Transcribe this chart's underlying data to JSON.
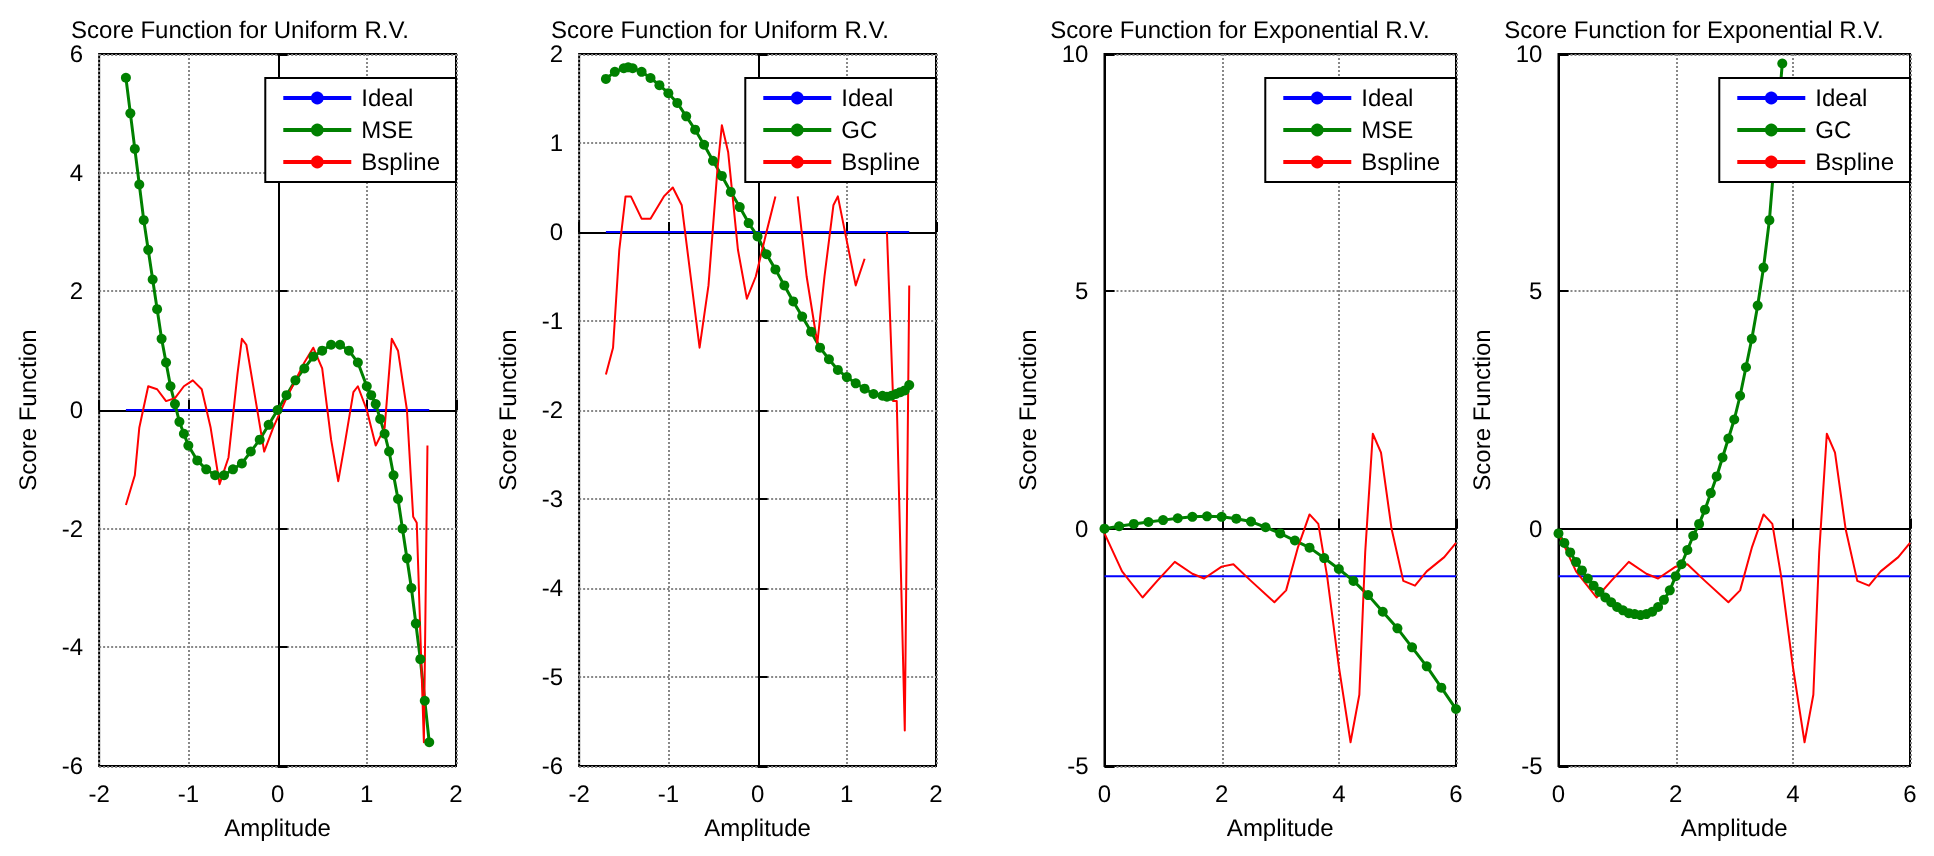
{
  "chart_data": [
    {
      "type": "line",
      "title": "Score Function for Uniform R.V.",
      "xlabel": "Amplitude",
      "ylabel": "Score Function",
      "xlim": [
        -2,
        2
      ],
      "xticks": [
        -2,
        -1,
        0,
        1,
        2
      ],
      "ylim": [
        -6,
        6
      ],
      "yticks": [
        -6,
        -4,
        -2,
        0,
        2,
        4,
        6
      ],
      "grid": true,
      "legend": "top right",
      "series": [
        {
          "name": "Ideal",
          "color": "#0000ff",
          "marker": "none",
          "x": [
            -1.7,
            1.7
          ],
          "values": [
            0,
            0
          ]
        },
        {
          "name": "MSE",
          "color": "#008000",
          "marker": "circle",
          "x": [
            -1.7,
            -1.65,
            -1.6,
            -1.55,
            -1.5,
            -1.45,
            -1.4,
            -1.35,
            -1.3,
            -1.25,
            -1.2,
            -1.15,
            -1.1,
            -1.05,
            -1.0,
            -0.9,
            -0.8,
            -0.7,
            -0.6,
            -0.5,
            -0.4,
            -0.3,
            -0.2,
            -0.1,
            0,
            0.1,
            0.2,
            0.3,
            0.4,
            0.5,
            0.6,
            0.7,
            0.8,
            0.9,
            1.0,
            1.05,
            1.1,
            1.15,
            1.2,
            1.25,
            1.3,
            1.35,
            1.4,
            1.45,
            1.5,
            1.55,
            1.6,
            1.65,
            1.7
          ],
          "values": [
            5.6,
            5.0,
            4.4,
            3.8,
            3.2,
            2.7,
            2.2,
            1.7,
            1.2,
            0.8,
            0.4,
            0.1,
            -0.2,
            -0.4,
            -0.6,
            -0.85,
            -1.0,
            -1.1,
            -1.1,
            -1.0,
            -0.9,
            -0.7,
            -0.5,
            -0.25,
            0,
            0.25,
            0.5,
            0.7,
            0.9,
            1.0,
            1.1,
            1.1,
            1.0,
            0.8,
            0.4,
            0.25,
            0.1,
            -0.15,
            -0.4,
            -0.7,
            -1.1,
            -1.5,
            -2.0,
            -2.5,
            -3.0,
            -3.6,
            -4.2,
            -4.9,
            -5.6
          ]
        },
        {
          "name": "Bspline",
          "color": "#ff0000",
          "marker": "none",
          "x": [
            -1.7,
            -1.6,
            -1.55,
            -1.45,
            -1.35,
            -1.25,
            -1.15,
            -1.05,
            -0.95,
            -0.85,
            -0.75,
            -0.65,
            -0.55,
            -0.45,
            -0.4,
            -0.35,
            -0.25,
            -0.15,
            -0.05,
            0.1,
            0.2,
            0.3,
            0.4,
            0.5,
            0.6,
            0.68,
            0.75,
            0.85,
            0.9,
            1.0,
            1.1,
            1.2,
            1.28,
            1.35,
            1.45,
            1.52,
            1.56,
            1.64,
            1.68
          ],
          "values": [
            -1.6,
            -1.1,
            -0.3,
            0.4,
            0.35,
            0.15,
            0.2,
            0.4,
            0.5,
            0.35,
            -0.3,
            -1.25,
            -0.8,
            0.6,
            1.2,
            1.1,
            0.2,
            -0.7,
            -0.3,
            0.2,
            0.5,
            0.8,
            1.05,
            0.7,
            -0.5,
            -1.2,
            -0.6,
            0.3,
            0.4,
            0.0,
            -0.6,
            -0.3,
            1.2,
            1.0,
            0,
            -1.8,
            -1.9,
            -5.6,
            -0.6
          ]
        }
      ]
    },
    {
      "type": "line",
      "title": "Score Function for Uniform R.V.",
      "xlabel": "Amplitude",
      "ylabel": "Score Function",
      "xlim": [
        -2,
        2
      ],
      "xticks": [
        -2,
        -1,
        0,
        1,
        2
      ],
      "ylim": [
        -6,
        2
      ],
      "yticks": [
        -6,
        -5,
        -4,
        -3,
        -2,
        -1,
        0,
        1,
        2
      ],
      "grid": true,
      "legend": "top right",
      "series": [
        {
          "name": "Ideal",
          "color": "#0000ff",
          "marker": "none",
          "x": [
            -1.7,
            1.7
          ],
          "values": [
            0,
            0
          ]
        },
        {
          "name": "GC",
          "color": "#008000",
          "marker": "circle",
          "x": [
            -1.7,
            -1.6,
            -1.5,
            -1.45,
            -1.4,
            -1.3,
            -1.2,
            -1.1,
            -1.0,
            -0.9,
            -0.8,
            -0.7,
            -0.6,
            -0.5,
            -0.4,
            -0.3,
            -0.2,
            -0.1,
            0,
            0.1,
            0.2,
            0.3,
            0.4,
            0.5,
            0.6,
            0.7,
            0.8,
            0.9,
            1.0,
            1.1,
            1.2,
            1.3,
            1.4,
            1.45,
            1.5,
            1.55,
            1.6,
            1.65,
            1.7
          ],
          "values": [
            1.72,
            1.8,
            1.84,
            1.85,
            1.84,
            1.8,
            1.73,
            1.65,
            1.56,
            1.45,
            1.3,
            1.15,
            0.98,
            0.8,
            0.63,
            0.45,
            0.28,
            0.1,
            -0.05,
            -0.25,
            -0.42,
            -0.6,
            -0.78,
            -0.95,
            -1.12,
            -1.3,
            -1.43,
            -1.55,
            -1.63,
            -1.7,
            -1.76,
            -1.82,
            -1.84,
            -1.85,
            -1.84,
            -1.82,
            -1.8,
            -1.78,
            -1.72
          ]
        },
        {
          "name": "Bspline",
          "color": "#ff0000",
          "marker": "none",
          "x": [
            -1.7,
            -1.62,
            -1.55,
            -1.48,
            -1.42,
            -1.3,
            -1.2,
            -1.05,
            -0.95,
            -0.85,
            -0.75,
            -0.65,
            -0.55,
            -0.45,
            -0.4,
            -0.33,
            -0.22,
            -0.12,
            -0.02,
            0.1,
            0.2,
            0.3,
            0.45,
            0.55,
            0.67,
            0.75,
            0.85,
            0.9,
            1.0,
            1.1,
            1.2,
            1.28,
            1.45,
            1.52,
            1.56,
            1.65,
            1.7
          ],
          "values": [
            -1.6,
            -1.3,
            -0.2,
            0.4,
            0.4,
            0.15,
            0.15,
            0.4,
            0.5,
            0.3,
            -0.5,
            -1.3,
            -0.6,
            0.7,
            1.2,
            0.9,
            -0.2,
            -0.75,
            -0.5,
            0,
            0.4,
            null,
            0.4,
            -0.5,
            -1.25,
            -0.5,
            0.3,
            0.4,
            -0.1,
            -0.6,
            -0.3,
            null,
            0,
            -1.9,
            -1.9,
            -5.6,
            -0.6
          ]
        }
      ]
    },
    {
      "type": "line",
      "title": "Score Function for Exponential R.V.",
      "xlabel": "Amplitude",
      "ylabel": "Score Function",
      "xlim": [
        0,
        6
      ],
      "xticks": [
        0,
        2,
        4,
        6
      ],
      "ylim": [
        -5,
        10
      ],
      "yticks": [
        -5,
        0,
        5,
        10
      ],
      "grid": true,
      "legend": "top right",
      "series": [
        {
          "name": "Ideal",
          "color": "#0000ff",
          "marker": "none",
          "x": [
            0,
            6
          ],
          "values": [
            -1,
            -1
          ]
        },
        {
          "name": "MSE",
          "color": "#008000",
          "marker": "circle",
          "x": [
            0,
            0.25,
            0.5,
            0.75,
            1,
            1.25,
            1.5,
            1.75,
            2,
            2.25,
            2.5,
            2.75,
            3,
            3.25,
            3.5,
            3.75,
            4,
            4.25,
            4.5,
            4.75,
            5,
            5.25,
            5.5,
            5.75,
            6
          ],
          "values": [
            0,
            0.05,
            0.1,
            0.14,
            0.18,
            0.22,
            0.25,
            0.26,
            0.25,
            0.21,
            0.15,
            0.03,
            -0.1,
            -0.25,
            -0.4,
            -0.62,
            -0.85,
            -1.1,
            -1.4,
            -1.75,
            -2.1,
            -2.5,
            -2.9,
            -3.35,
            -3.8
          ]
        },
        {
          "name": "Bspline",
          "color": "#ff0000",
          "marker": "none",
          "x": [
            0,
            0.3,
            0.65,
            0.9,
            1.2,
            1.5,
            1.7,
            2.0,
            2.2,
            2.5,
            2.9,
            3.1,
            3.3,
            3.5,
            3.65,
            3.8,
            4.0,
            4.2,
            4.35,
            4.45,
            4.58,
            4.72,
            4.9,
            5.1,
            5.3,
            5.5,
            5.8,
            6
          ],
          "values": [
            -0.1,
            -0.9,
            -1.45,
            -1.1,
            -0.7,
            -0.95,
            -1.05,
            -0.8,
            -0.75,
            -1.1,
            -1.55,
            -1.3,
            -0.4,
            0.3,
            0.1,
            -1.0,
            -2.9,
            -4.5,
            -3.5,
            -0.5,
            2.0,
            1.6,
            0,
            -1.1,
            -1.2,
            -0.9,
            -0.6,
            -0.3
          ]
        }
      ]
    },
    {
      "type": "line",
      "title": "Score Function for Exponential R.V.",
      "xlabel": "Amplitude",
      "ylabel": "Score Function",
      "xlim": [
        0,
        6
      ],
      "xticks": [
        0,
        2,
        4,
        6
      ],
      "ylim": [
        -5,
        10
      ],
      "yticks": [
        -5,
        0,
        5,
        10
      ],
      "grid": true,
      "legend": "top right",
      "series": [
        {
          "name": "Ideal",
          "color": "#0000ff",
          "marker": "none",
          "x": [
            0,
            6
          ],
          "values": [
            -1,
            -1
          ]
        },
        {
          "name": "GC",
          "color": "#008000",
          "marker": "circle",
          "x": [
            0,
            0.1,
            0.2,
            0.3,
            0.4,
            0.5,
            0.6,
            0.7,
            0.8,
            0.9,
            1.0,
            1.1,
            1.2,
            1.3,
            1.4,
            1.5,
            1.6,
            1.7,
            1.8,
            1.9,
            2.0,
            2.1,
            2.2,
            2.3,
            2.4,
            2.5,
            2.6,
            2.7,
            2.8,
            2.9,
            3.0,
            3.1,
            3.2,
            3.3,
            3.4,
            3.5,
            3.6,
            3.82
          ],
          "values": [
            -0.1,
            -0.3,
            -0.5,
            -0.7,
            -0.88,
            -1.05,
            -1.2,
            -1.33,
            -1.45,
            -1.55,
            -1.65,
            -1.72,
            -1.78,
            -1.8,
            -1.82,
            -1.8,
            -1.75,
            -1.65,
            -1.5,
            -1.3,
            -1.0,
            -0.75,
            -0.45,
            -0.15,
            0.1,
            0.4,
            0.75,
            1.1,
            1.5,
            1.9,
            2.3,
            2.8,
            3.4,
            4.0,
            4.7,
            5.5,
            6.5,
            9.8
          ]
        },
        {
          "name": "Bspline",
          "color": "#ff0000",
          "marker": "none",
          "x": [
            0,
            0.3,
            0.65,
            0.9,
            1.2,
            1.5,
            1.7,
            2.0,
            2.2,
            2.5,
            2.9,
            3.1,
            3.3,
            3.5,
            3.65,
            3.8,
            4.0,
            4.2,
            4.35,
            4.45,
            4.58,
            4.72,
            4.9,
            5.1,
            5.3,
            5.5,
            5.8,
            6
          ],
          "values": [
            -0.1,
            -0.9,
            -1.45,
            -1.1,
            -0.7,
            -0.95,
            -1.05,
            -0.8,
            -0.75,
            -1.1,
            -1.55,
            -1.3,
            -0.4,
            0.3,
            0.1,
            -1.0,
            -2.9,
            -4.5,
            -3.5,
            -0.5,
            2.0,
            1.6,
            0,
            -1.1,
            -1.2,
            -0.9,
            -0.6,
            -0.3
          ]
        }
      ]
    }
  ]
}
